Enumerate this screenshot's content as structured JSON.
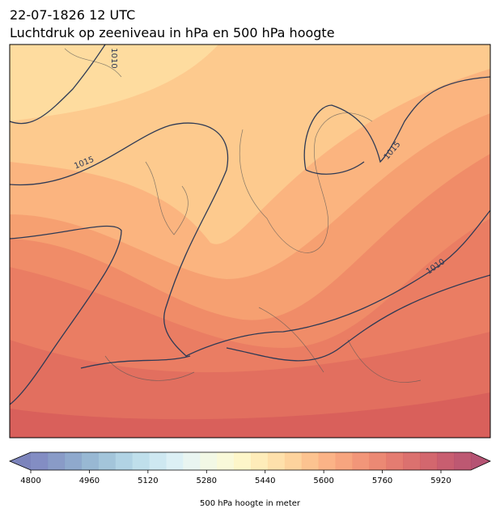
{
  "title": {
    "line1": "22-07-1826 12 UTC",
    "line2": "Luchtdruk op zeeniveau in hPa en 500 hPa hoogte"
  },
  "contour_labels": [
    "1010",
    "1015",
    "1015",
    "1010"
  ],
  "colorbar": {
    "ticks": [
      4800,
      4960,
      5120,
      5280,
      5440,
      5600,
      5760,
      5920
    ],
    "label": "500 hPa hoogte in meter"
  }
}
